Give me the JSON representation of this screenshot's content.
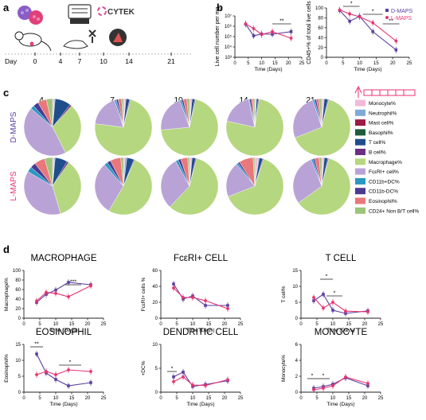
{
  "colors": {
    "d_maps": "#5b3fa0",
    "l_maps": "#e8336f"
  },
  "panels": {
    "a": "a",
    "b": "b",
    "c": "c",
    "d": "d"
  },
  "panel_a": {
    "brand": "CYTEK",
    "day_label": "Day",
    "days": [
      "0",
      "4",
      "7",
      "10",
      "14",
      "21"
    ]
  },
  "chart_data": [
    {
      "type": "line",
      "ylabel": "Live cell number per mg",
      "xlabel": "Time (Days)",
      "yscale": "log",
      "ylim": [
        1000,
        10000000
      ],
      "xlim": [
        0,
        25
      ],
      "yticks": [
        "10³",
        "10⁴",
        "10⁵",
        "10⁶",
        "10⁷"
      ],
      "xticks": [
        0,
        5,
        10,
        15,
        20,
        25
      ],
      "x": [
        4,
        7,
        10,
        14,
        21
      ],
      "series": [
        {
          "name": "D-MAPS",
          "values": [
            1600000,
            120000,
            180000,
            170000,
            300000
          ]
        },
        {
          "name": "L-MAPS",
          "values": [
            1700000,
            600000,
            160000,
            300000,
            70000
          ]
        }
      ],
      "annotations": [
        "**"
      ]
    },
    {
      "type": "line",
      "ylabel": "CD45+% of total live cells",
      "xlabel": "Time (Days)",
      "ylim": [
        0,
        100
      ],
      "xlim": [
        0,
        25
      ],
      "yticks": [
        0,
        20,
        40,
        60,
        80,
        100
      ],
      "xticks": [
        0,
        5,
        10,
        15,
        20,
        25
      ],
      "x": [
        4,
        7,
        10,
        14,
        21
      ],
      "series": [
        {
          "name": "D-MAPS",
          "values": [
            95,
            73,
            83,
            52,
            15
          ]
        },
        {
          "name": "L-MAPS",
          "values": [
            96,
            88,
            82,
            70,
            33
          ]
        }
      ],
      "legend": "top-right",
      "annotations": [
        "*",
        "*",
        "**"
      ]
    },
    {
      "type": "pie",
      "timepoints": [
        "4",
        "7",
        "10",
        "14",
        "21"
      ],
      "rows": [
        "D-MAPS",
        "L-MAPS"
      ],
      "categories": [
        "Monocyte%",
        "Neutrophil%",
        "Mast cell%",
        "Basophil%",
        "T cell%",
        "B cell%",
        "Macrophage%",
        "FcεRI+ cell%",
        "CD11b+DC%",
        "CD11b-DC%",
        "Eosinophil%",
        "CD24+ Non B/T cell%"
      ],
      "category_colors": [
        "#f5b8d8",
        "#7fa9d9",
        "#9b1c45",
        "#1d5c3a",
        "#1f4e8c",
        "#6a2f83",
        "#b5d77f",
        "#b9a3d6",
        "#2a98c2",
        "#4a3a93",
        "#e8787a",
        "#9cc47a"
      ],
      "values": {
        "D-MAPS": [
          [
            1,
            0.5,
            0,
            0,
            9,
            1,
            31,
            44,
            2,
            3,
            5,
            3.5
          ],
          [
            1,
            0.5,
            0,
            0,
            2,
            0.5,
            73,
            18,
            1,
            1,
            2,
            1
          ],
          [
            1,
            0.5,
            0,
            0,
            1.5,
            0.5,
            70,
            21,
            1,
            1,
            2,
            1.5
          ],
          [
            0.5,
            0.5,
            0,
            0,
            1,
            0.5,
            76,
            18,
            0.5,
            1,
            1,
            1
          ],
          [
            1,
            0.5,
            0,
            0,
            2,
            0.5,
            65,
            26,
            1,
            1,
            1.5,
            1.5
          ]
        ],
        "L-MAPS": [
          [
            1,
            0.5,
            0,
            0,
            7,
            1,
            36,
            38,
            3,
            3,
            6,
            4.5
          ],
          [
            1,
            1,
            0,
            0,
            4,
            0.5,
            52,
            30,
            2,
            2,
            6,
            1.5
          ],
          [
            1,
            0.5,
            0,
            0,
            2,
            0.5,
            58,
            30,
            1.5,
            1.5,
            4,
            1
          ],
          [
            2,
            0.5,
            0,
            0,
            2,
            0.5,
            64,
            20,
            1,
            1,
            8,
            1
          ],
          [
            1,
            0.5,
            0,
            0,
            2,
            0.5,
            61,
            29,
            1,
            1,
            2.5,
            1.5
          ]
        ]
      }
    },
    {
      "type": "line",
      "title": "MACROPHAGE",
      "ylabel": "Macrophage%",
      "xlabel": "Time (Days)",
      "ylim": [
        0,
        100
      ],
      "yticks": [
        0,
        20,
        40,
        60,
        80,
        100
      ],
      "xlim": [
        0,
        25
      ],
      "xticks": [
        0,
        5,
        10,
        15,
        20,
        25
      ],
      "x": [
        4,
        7,
        10,
        14,
        21
      ],
      "series": [
        {
          "name": "D-MAPS",
          "values": [
            33,
            50,
            59,
            75,
            70
          ]
        },
        {
          "name": "L-MAPS",
          "values": [
            36,
            54,
            52,
            45,
            68
          ]
        }
      ],
      "annotations": [
        "***"
      ]
    },
    {
      "type": "line",
      "title": "FcεRI+ CELL",
      "ylabel": "FcεRI+ cells %",
      "xlabel": "Time (Days)",
      "ylim": [
        0,
        60
      ],
      "yticks": [
        0,
        20,
        40,
        60
      ],
      "xlim": [
        0,
        25
      ],
      "xticks": [
        0,
        5,
        10,
        15,
        20,
        25
      ],
      "x": [
        4,
        7,
        10,
        14,
        21
      ],
      "series": [
        {
          "name": "D-MAPS",
          "values": [
            43,
            24,
            28,
            16,
            16
          ]
        },
        {
          "name": "L-MAPS",
          "values": [
            38,
            26,
            26,
            22,
            12
          ]
        }
      ],
      "annotations": []
    },
    {
      "type": "line",
      "title": "T CELL",
      "ylabel": "T cell%",
      "xlabel": "Time (Days)",
      "ylim": [
        0,
        15
      ],
      "yticks": [
        0,
        5,
        10,
        15
      ],
      "xlim": [
        0,
        25
      ],
      "xticks": [
        0,
        5,
        10,
        15,
        20,
        25
      ],
      "x": [
        4,
        7,
        10,
        14,
        21
      ],
      "series": [
        {
          "name": "D-MAPS",
          "values": [
            5.5,
            7.5,
            2.5,
            1.5,
            2.3
          ]
        },
        {
          "name": "L-MAPS",
          "values": [
            6.5,
            3.2,
            5.0,
            2.2,
            2.0
          ]
        }
      ],
      "annotations": [
        "*",
        "*"
      ]
    },
    {
      "type": "line",
      "title": "EOSINOPHIL",
      "ylabel": "Eosinophil%",
      "xlabel": "Time (Days)",
      "ylim": [
        0,
        15
      ],
      "yticks": [
        0,
        5,
        10,
        15
      ],
      "xlim": [
        0,
        25
      ],
      "xticks": [
        0,
        5,
        10,
        15,
        20,
        25
      ],
      "x": [
        4,
        7,
        10,
        14,
        21
      ],
      "series": [
        {
          "name": "D-MAPS",
          "values": [
            12,
            6,
            4,
            2,
            3
          ]
        },
        {
          "name": "L-MAPS",
          "values": [
            5.5,
            6.5,
            5.5,
            7,
            6.5
          ]
        }
      ],
      "annotations": [
        "**",
        "*"
      ]
    },
    {
      "type": "line",
      "title": "DENDRITIC CELL",
      "ylabel": "+DC%",
      "xlabel": "Time (Days)",
      "ylim": [
        0,
        10
      ],
      "yticks": [
        0,
        5,
        10
      ],
      "xlim": [
        0,
        25
      ],
      "xticks": [
        0,
        5,
        10,
        15,
        20,
        25
      ],
      "x": [
        4,
        7,
        10,
        14,
        21
      ],
      "series": [
        {
          "name": "D-MAPS",
          "values": [
            3.2,
            4.2,
            1.2,
            1.6,
            2.4
          ]
        },
        {
          "name": "L-MAPS",
          "values": [
            2.2,
            3.2,
            1.5,
            1.4,
            2.6
          ]
        }
      ],
      "annotations": [
        "*"
      ]
    },
    {
      "type": "line",
      "title": "MONOCYTE",
      "ylabel": "Monocyte%",
      "xlabel": "Time (Days)",
      "ylim": [
        0,
        6
      ],
      "yticks": [
        0,
        2,
        4,
        6
      ],
      "xlim": [
        0,
        25
      ],
      "xticks": [
        0,
        5,
        10,
        15,
        20,
        25
      ],
      "x": [
        4,
        7,
        10,
        14,
        21
      ],
      "series": [
        {
          "name": "D-MAPS",
          "values": [
            0.5,
            0.7,
            1.0,
            1.8,
            0.8
          ]
        },
        {
          "name": "L-MAPS",
          "values": [
            0.3,
            0.5,
            0.8,
            1.9,
            1.1
          ]
        }
      ],
      "annotations": [
        "*",
        "*"
      ]
    }
  ]
}
